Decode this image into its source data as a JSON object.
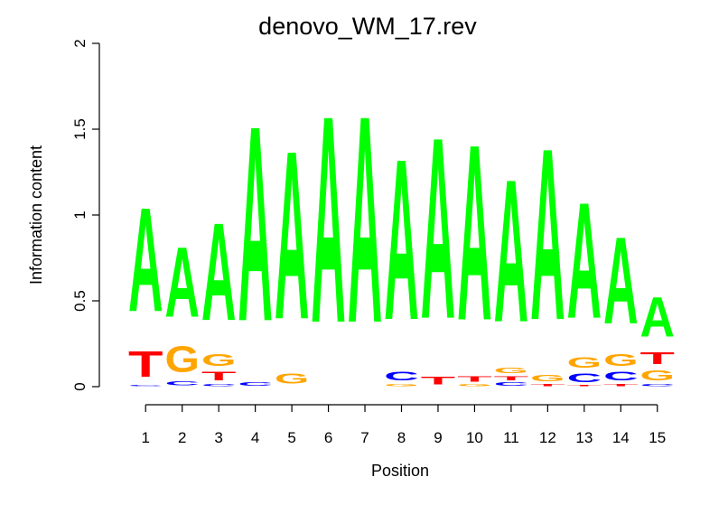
{
  "chart_data": {
    "type": "sequence_logo",
    "title": "denovo_WM_17.rev",
    "xlabel": "Position",
    "ylabel": "Information content",
    "ylim": [
      0,
      2
    ],
    "y_ticks": [
      "0",
      "0.5",
      "1",
      "1.5",
      "2"
    ],
    "y_tick_values": [
      0,
      0.5,
      1,
      1.5,
      2
    ],
    "x_ticks": [
      "1",
      "2",
      "3",
      "4",
      "5",
      "6",
      "7",
      "8",
      "9",
      "10",
      "11",
      "12",
      "13",
      "14",
      "15"
    ],
    "colors": {
      "A": "#00ff00",
      "C": "#0000ff",
      "G": "#ffa500",
      "T": "#ff0000"
    },
    "positions": [
      {
        "pos": 1,
        "stack": [
          {
            "letter": "C",
            "height": 0.01
          },
          {
            "letter": "T",
            "height": 0.24
          },
          {
            "letter": "A",
            "height": 0.97
          }
        ]
      },
      {
        "pos": 2,
        "stack": [
          {
            "letter": "C",
            "height": 0.04
          },
          {
            "letter": "G",
            "height": 0.24
          },
          {
            "letter": "A",
            "height": 0.65
          }
        ]
      },
      {
        "pos": 3,
        "stack": [
          {
            "letter": "C",
            "height": 0.02
          },
          {
            "letter": "T",
            "height": 0.08
          },
          {
            "letter": "G",
            "height": 0.11
          },
          {
            "letter": "A",
            "height": 0.91
          }
        ]
      },
      {
        "pos": 4,
        "stack": [
          {
            "letter": "C",
            "height": 0.03
          },
          {
            "letter": "A",
            "height": 1.82
          }
        ]
      },
      {
        "pos": 5,
        "stack": [
          {
            "letter": "G",
            "height": 0.09
          },
          {
            "letter": "A",
            "height": 1.57
          }
        ]
      },
      {
        "pos": 6,
        "stack": [
          {
            "letter": "A",
            "height": 1.93
          }
        ]
      },
      {
        "pos": 7,
        "stack": [
          {
            "letter": "A",
            "height": 1.93
          }
        ]
      },
      {
        "pos": 8,
        "stack": [
          {
            "letter": "G",
            "height": 0.02
          },
          {
            "letter": "C",
            "height": 0.08
          },
          {
            "letter": "A",
            "height": 1.5
          }
        ]
      },
      {
        "pos": 9,
        "stack": [
          {
            "letter": "T",
            "height": 0.07
          },
          {
            "letter": "A",
            "height": 1.69
          }
        ]
      },
      {
        "pos": 10,
        "stack": [
          {
            "letter": "G",
            "height": 0.02
          },
          {
            "letter": "T",
            "height": 0.05
          },
          {
            "letter": "A",
            "height": 1.64
          }
        ]
      },
      {
        "pos": 11,
        "stack": [
          {
            "letter": "C",
            "height": 0.03
          },
          {
            "letter": "T",
            "height": 0.04
          },
          {
            "letter": "G",
            "height": 0.05
          },
          {
            "letter": "A",
            "height": 1.33
          }
        ]
      },
      {
        "pos": 12,
        "stack": [
          {
            "letter": "T",
            "height": 0.02
          },
          {
            "letter": "G",
            "height": 0.06
          },
          {
            "letter": "A",
            "height": 1.6
          }
        ]
      },
      {
        "pos": 13,
        "stack": [
          {
            "letter": "T",
            "height": 0.01
          },
          {
            "letter": "C",
            "height": 0.08
          },
          {
            "letter": "G",
            "height": 0.1
          },
          {
            "letter": "A",
            "height": 1.08
          }
        ]
      },
      {
        "pos": 14,
        "stack": [
          {
            "letter": "T",
            "height": 0.02
          },
          {
            "letter": "C",
            "height": 0.08
          },
          {
            "letter": "G",
            "height": 0.11
          },
          {
            "letter": "A",
            "height": 0.81
          }
        ]
      },
      {
        "pos": 15,
        "stack": [
          {
            "letter": "C",
            "height": 0.02
          },
          {
            "letter": "G",
            "height": 0.09
          },
          {
            "letter": "T",
            "height": 0.11
          },
          {
            "letter": "A",
            "height": 0.37
          }
        ]
      }
    ]
  }
}
